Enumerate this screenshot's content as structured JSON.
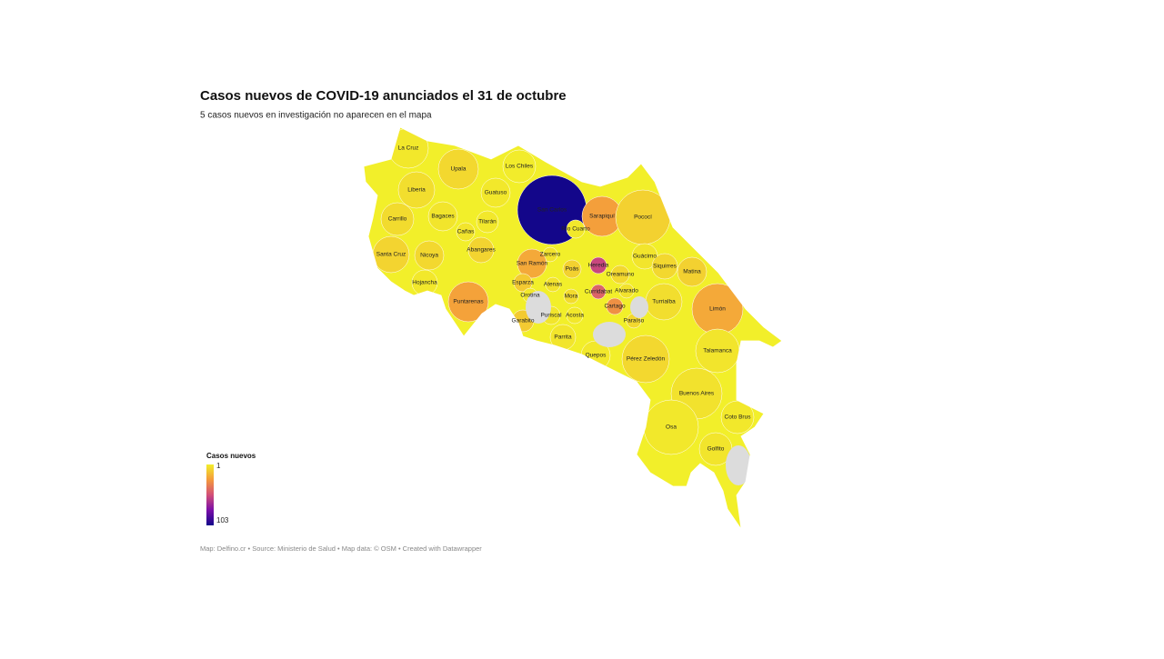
{
  "chart_data": {
    "type": "choropleth",
    "title": "Casos nuevos de COVID-19 anunciados el 31 de octubre",
    "subtitle": "5 casos nuevos en investigación no aparecen en el mapa",
    "footer": "Map: Delfino.cr • Source: Ministerio de Salud • Map data: © OSM • Created with Datawrapper",
    "legend": {
      "title": "Casos nuevos",
      "min": 1,
      "max": 103,
      "colors": [
        "#f2ef2a",
        "#f49a3c",
        "#d24f78",
        "#7a0ea8",
        "#13068a"
      ]
    },
    "cantons": [
      {
        "name": "La Cruz",
        "value": 3
      },
      {
        "name": "Upala",
        "value": 8
      },
      {
        "name": "Los Chiles",
        "value": 2
      },
      {
        "name": "Liberia",
        "value": 6
      },
      {
        "name": "Guatuso",
        "value": 3
      },
      {
        "name": "San Carlos",
        "value": 103
      },
      {
        "name": "Sarapiquí",
        "value": 25
      },
      {
        "name": "Pococí",
        "value": 10
      },
      {
        "name": "Carrillo",
        "value": 7
      },
      {
        "name": "Bagaces",
        "value": 4
      },
      {
        "name": "Tilarán",
        "value": 3
      },
      {
        "name": "Río Cuarto",
        "value": 3
      },
      {
        "name": "Cañas",
        "value": 4
      },
      {
        "name": "Abangares",
        "value": 9
      },
      {
        "name": "Santa Cruz",
        "value": 9
      },
      {
        "name": "Nicoya",
        "value": 8
      },
      {
        "name": "Zarcero",
        "value": 5
      },
      {
        "name": "Guácimo",
        "value": 4
      },
      {
        "name": "San Ramón",
        "value": 22
      },
      {
        "name": "Poás",
        "value": 10
      },
      {
        "name": "Heredia",
        "value": 55
      },
      {
        "name": "Siquirres",
        "value": 8
      },
      {
        "name": "Matina",
        "value": 10
      },
      {
        "name": "Esparza",
        "value": 12
      },
      {
        "name": "Oreamuno",
        "value": 8
      },
      {
        "name": "Hojancha",
        "value": 3
      },
      {
        "name": "Atenas",
        "value": 5
      },
      {
        "name": "Curridabat",
        "value": 45
      },
      {
        "name": "Alvarado",
        "value": 5
      },
      {
        "name": "Orotina",
        "value": 3
      },
      {
        "name": "Mora",
        "value": 7
      },
      {
        "name": "Turrialba",
        "value": 6
      },
      {
        "name": "Puntarenas",
        "value": 24
      },
      {
        "name": "Cartago",
        "value": 30
      },
      {
        "name": "Limón",
        "value": 22
      },
      {
        "name": "Garabito",
        "value": 12
      },
      {
        "name": "Puriscal",
        "value": 4
      },
      {
        "name": "Acosta",
        "value": 3
      },
      {
        "name": "Paraíso",
        "value": 8
      },
      {
        "name": "Parrita",
        "value": 4
      },
      {
        "name": "Quepos",
        "value": 3
      },
      {
        "name": "Talamanca",
        "value": 4
      },
      {
        "name": "Pérez Zeledón",
        "value": 8
      },
      {
        "name": "Buenos Aires",
        "value": 5
      },
      {
        "name": "Osa",
        "value": 3
      },
      {
        "name": "Coto Brus",
        "value": 3
      },
      {
        "name": "Golfito",
        "value": 4
      }
    ]
  }
}
